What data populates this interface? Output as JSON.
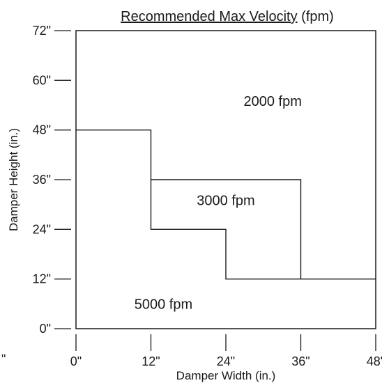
{
  "chart_data": {
    "type": "region",
    "title_main": "Recommended Max Velocity",
    "title_suffix": " (fpm)",
    "xlabel": "Damper Width (in.)",
    "ylabel": "Damper Height (in.)",
    "xlim": [
      0,
      48
    ],
    "ylim": [
      0,
      72
    ],
    "x_ticks": [
      {
        "value": 0,
        "label": "0\""
      },
      {
        "value": 12,
        "label": "12\""
      },
      {
        "value": 24,
        "label": "24\""
      },
      {
        "value": 36,
        "label": "36\""
      },
      {
        "value": 48,
        "label": "48\""
      }
    ],
    "y_ticks": [
      {
        "value": 0,
        "label": "0\""
      },
      {
        "value": 12,
        "label": "12\""
      },
      {
        "value": 24,
        "label": "24\""
      },
      {
        "value": 36,
        "label": "36\""
      },
      {
        "value": 48,
        "label": "48\""
      },
      {
        "value": 60,
        "label": "60\""
      },
      {
        "value": 72,
        "label": "72\""
      }
    ],
    "extra_x_label": "\"",
    "boundaries": [
      {
        "name": "boundary-5000-3000",
        "points": [
          [
            0,
            48
          ],
          [
            12,
            48
          ],
          [
            12,
            24
          ],
          [
            24,
            24
          ],
          [
            24,
            12
          ],
          [
            48,
            12
          ]
        ]
      },
      {
        "name": "boundary-3000-2000",
        "points": [
          [
            12,
            36
          ],
          [
            36,
            36
          ],
          [
            36,
            12
          ]
        ]
      }
    ],
    "regions": [
      {
        "label": "2000 fpm",
        "x": 31.5,
        "y": 55
      },
      {
        "label": "3000 fpm",
        "x": 24,
        "y": 31
      },
      {
        "label": "5000 fpm",
        "x": 14,
        "y": 6
      }
    ]
  }
}
